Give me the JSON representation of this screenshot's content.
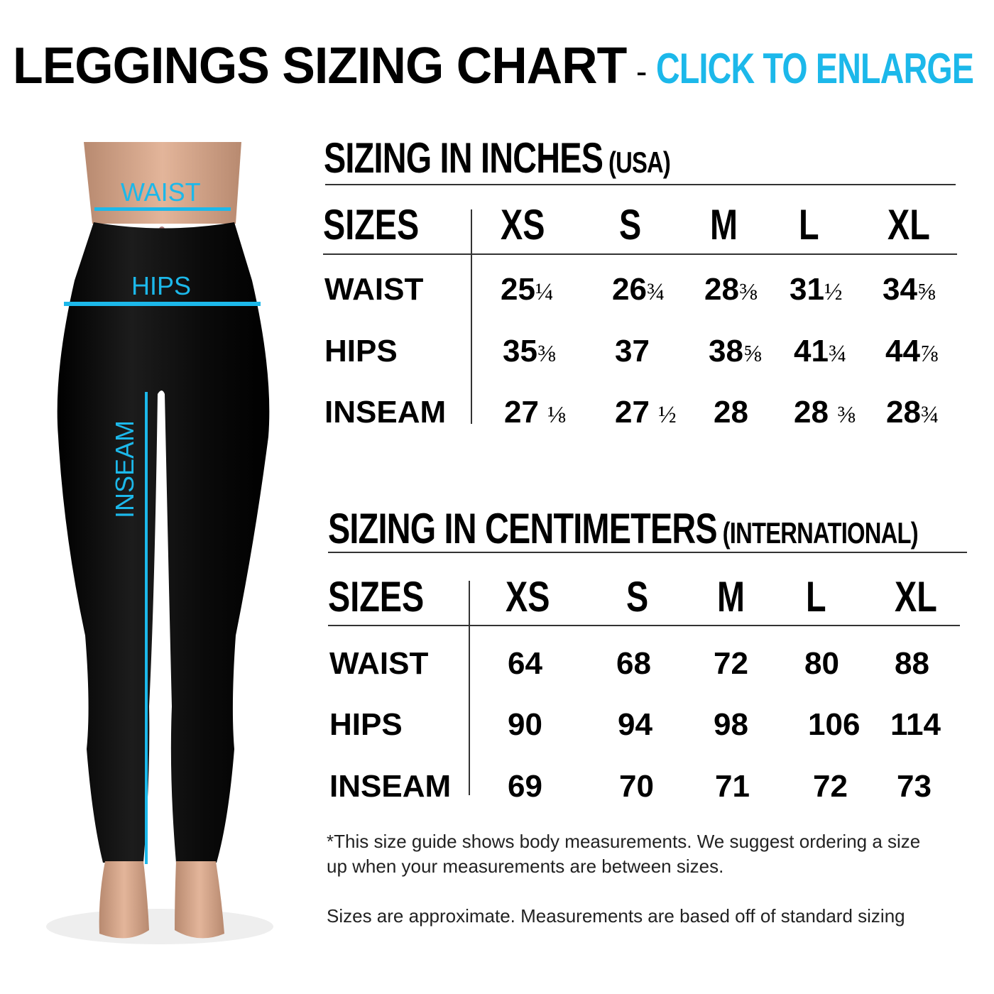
{
  "header": {
    "title": "LEGGINGS SIZING CHART",
    "separator": "-",
    "cta": "CLICK TO ENLARGE",
    "accent_color": "#1cb8ea"
  },
  "figure": {
    "labels": {
      "waist": "WAIST",
      "hips": "HIPS",
      "inseam": "INSEAM"
    }
  },
  "inches": {
    "heading": "SIZING IN INCHES",
    "heading_sub": "(USA)",
    "columns": [
      "SIZES",
      "XS",
      "S",
      "M",
      "L",
      "XL"
    ],
    "rows": [
      {
        "label": "WAIST",
        "values": [
          [
            "25",
            "¼"
          ],
          [
            "26",
            "¾"
          ],
          [
            "28",
            "⅜"
          ],
          [
            "31",
            "½"
          ],
          [
            "34",
            "⅝"
          ]
        ]
      },
      {
        "label": "HIPS",
        "values": [
          [
            "35",
            "⅜"
          ],
          [
            "37",
            ""
          ],
          [
            "38",
            "⅝"
          ],
          [
            "41",
            "¾"
          ],
          [
            "44",
            "⅞"
          ]
        ]
      },
      {
        "label": "INSEAM",
        "values": [
          [
            "27 ",
            "⅛"
          ],
          [
            "27 ",
            "½"
          ],
          [
            "28",
            ""
          ],
          [
            "28 ",
            "⅜"
          ],
          [
            "28",
            "¾"
          ]
        ]
      }
    ]
  },
  "centimeters": {
    "heading": "SIZING IN CENTIMETERS",
    "heading_sub": "(INTERNATIONAL)",
    "columns": [
      "SIZES",
      "XS",
      "S",
      "M",
      "L",
      "XL"
    ],
    "rows": [
      {
        "label": "WAIST",
        "values": [
          "64",
          "68",
          "72",
          "80",
          "88"
        ]
      },
      {
        "label": "HIPS",
        "values": [
          "90",
          "94",
          "98",
          "106",
          "114"
        ]
      },
      {
        "label": "INSEAM",
        "values": [
          "69",
          "70",
          "71",
          "72",
          "73"
        ]
      }
    ]
  },
  "notes": {
    "line1": "*This size guide shows body measurements. We suggest ordering a size",
    "line2": "up when your measurements are between sizes.",
    "line3": "Sizes are approximate. Measurements are based off of standard sizing"
  }
}
